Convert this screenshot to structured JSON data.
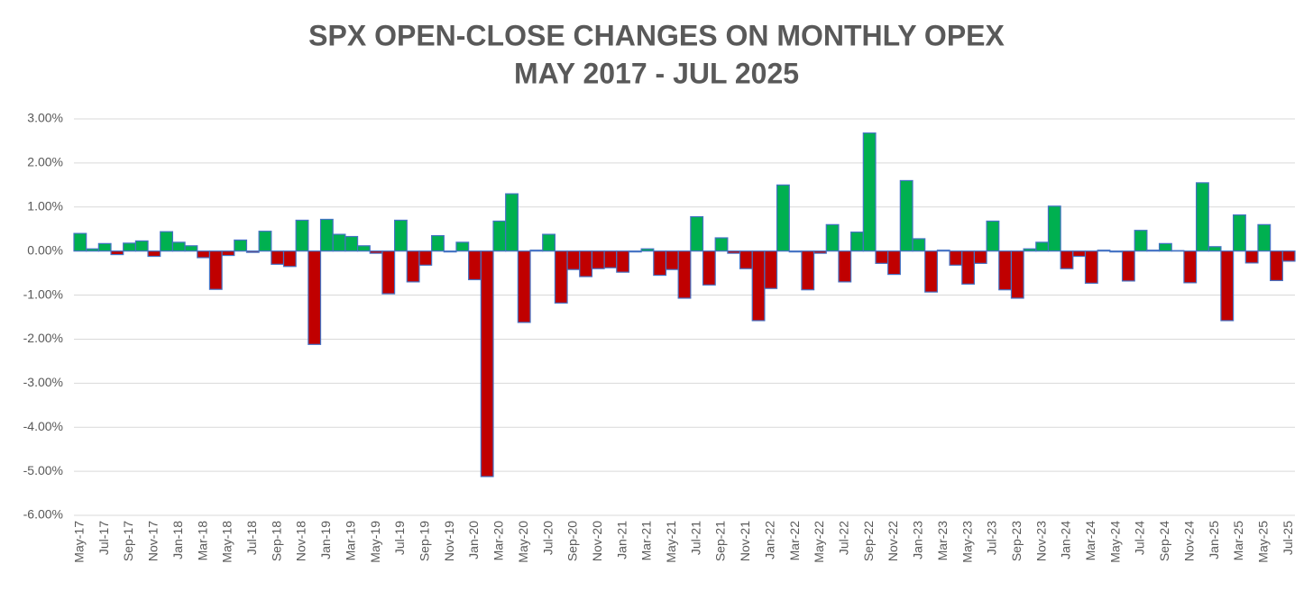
{
  "chart_data": {
    "type": "bar",
    "title": "SPX OPEN-CLOSE CHANGES ON MONTHLY OPEX",
    "subtitle": "MAY 2017 - JUL 2025",
    "categories": [
      "May-17",
      null,
      "Jul-17",
      null,
      "Sep-17",
      null,
      "Nov-17",
      null,
      "Jan-18",
      null,
      "Mar-18",
      null,
      "May-18",
      null,
      "Jul-18",
      null,
      "Sep-18",
      null,
      "Nov-18",
      null,
      "Jan-19",
      null,
      "Mar-19",
      null,
      "May-19",
      null,
      "Jul-19",
      null,
      "Sep-19",
      null,
      "Nov-19",
      null,
      "Jan-20",
      null,
      "Mar-20",
      null,
      "May-20",
      null,
      "Jul-20",
      null,
      "Sep-20",
      null,
      "Nov-20",
      null,
      "Jan-21",
      null,
      "Mar-21",
      null,
      "May-21",
      null,
      "Jul-21",
      null,
      "Sep-21",
      null,
      "Nov-21",
      null,
      "Jan-22",
      null,
      "Mar-22",
      null,
      "May-22",
      null,
      "Jul-22",
      null,
      "Sep-22",
      null,
      "Nov-22",
      null,
      "Jan-23",
      null,
      "Mar-23",
      null,
      "May-23",
      null,
      "Jul-23",
      null,
      "Sep-23",
      null,
      "Nov-23",
      null,
      "Jan-24",
      null,
      "Mar-24",
      null,
      "May-24",
      null,
      "Jul-24",
      null,
      "Sep-24",
      null,
      "Nov-24",
      null,
      "Jan-25",
      null,
      "Mar-25",
      null,
      "May-25",
      null,
      "Jul-25"
    ],
    "values": [
      0.4,
      0.05,
      0.17,
      -0.08,
      0.18,
      0.23,
      -0.12,
      0.44,
      0.2,
      0.12,
      -0.15,
      -0.87,
      -0.1,
      0.25,
      -0.03,
      0.45,
      -0.3,
      -0.35,
      0.7,
      -2.12,
      0.72,
      0.38,
      0.33,
      0.12,
      -0.05,
      -0.97,
      0.7,
      -0.7,
      -0.32,
      0.35,
      -0.02,
      0.2,
      -0.65,
      -5.12,
      0.68,
      1.3,
      -1.62,
      0.02,
      0.38,
      -1.18,
      -0.42,
      -0.58,
      -0.4,
      -0.38,
      -0.48,
      -0.02,
      0.05,
      -0.55,
      -0.42,
      -1.07,
      0.78,
      -0.77,
      0.3,
      -0.05,
      -0.4,
      -1.58,
      -0.85,
      1.5,
      -0.02,
      -0.88,
      -0.05,
      0.6,
      -0.7,
      0.43,
      2.68,
      -0.28,
      -0.53,
      1.6,
      0.28,
      -0.93,
      0.02,
      -0.32,
      -0.75,
      -0.28,
      0.68,
      -0.88,
      -1.07,
      0.05,
      0.2,
      1.02,
      -0.4,
      -0.12,
      -0.73,
      0.02,
      -0.02,
      -0.68,
      0.47,
      0.02,
      0.17,
      0.01,
      -0.72,
      1.55,
      0.1,
      -1.58,
      0.82,
      -0.27,
      0.6,
      -0.67,
      -0.23
    ],
    "positive_color": "#00b050",
    "negative_color": "#c00000",
    "edge_color": "#4472c4",
    "ylim": [
      -6,
      3
    ],
    "yticks": [
      {
        "value": 3,
        "label": "3.00%"
      },
      {
        "value": 2,
        "label": "2.00%"
      },
      {
        "value": 1,
        "label": "1.00%"
      },
      {
        "value": 0,
        "label": "0.00%"
      },
      {
        "value": -1,
        "label": "-1.00%"
      },
      {
        "value": -2,
        "label": "-2.00%"
      },
      {
        "value": -3,
        "label": "-3.00%"
      },
      {
        "value": -4,
        "label": "-4.00%"
      },
      {
        "value": -5,
        "label": "-5.00%"
      },
      {
        "value": -6,
        "label": "-6.00%"
      }
    ],
    "grid": true
  }
}
